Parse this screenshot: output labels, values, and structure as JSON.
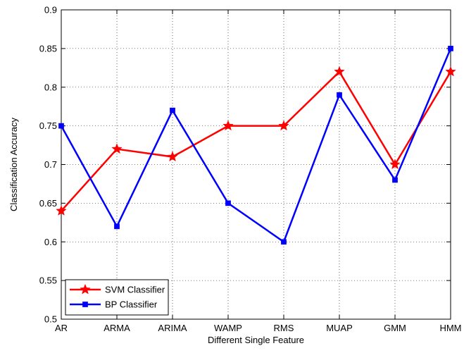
{
  "chart_data": {
    "type": "line",
    "title": "",
    "xlabel": "Different Single Feature",
    "ylabel": "Classification Accuracy",
    "categories": [
      "AR",
      "ARMA",
      "ARIMA",
      "WAMP",
      "RMS",
      "MUAP",
      "GMM",
      "HMM"
    ],
    "ylim": [
      0.5,
      0.9
    ],
    "yticks": [
      "0.5",
      "0.55",
      "0.6",
      "0.65",
      "0.7",
      "0.75",
      "0.8",
      "0.85",
      "0.9"
    ],
    "grid": true,
    "legend_position": "bottom-left",
    "series": [
      {
        "name": "SVM Classifier",
        "color": "#ff0000",
        "marker": "star",
        "values": [
          0.64,
          0.72,
          0.71,
          0.75,
          0.75,
          0.82,
          0.7,
          0.82
        ]
      },
      {
        "name": "BP Classifier",
        "color": "#0000ff",
        "marker": "square",
        "values": [
          0.75,
          0.62,
          0.77,
          0.65,
          0.6,
          0.79,
          0.68,
          0.85
        ]
      }
    ]
  }
}
